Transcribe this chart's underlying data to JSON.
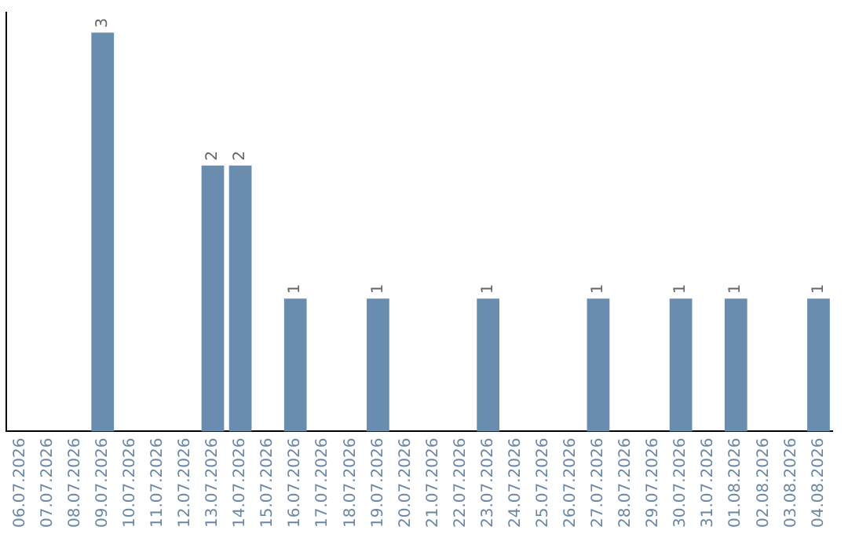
{
  "chart_data": {
    "type": "bar",
    "categories": [
      "06.07.2026",
      "07.07.2026",
      "08.07.2026",
      "09.07.2026",
      "10.07.2026",
      "11.07.2026",
      "12.07.2026",
      "13.07.2026",
      "14.07.2026",
      "15.07.2026",
      "16.07.2026",
      "17.07.2026",
      "18.07.2026",
      "19.07.2026",
      "20.07.2026",
      "21.07.2026",
      "22.07.2026",
      "23.07.2026",
      "24.07.2026",
      "25.07.2026",
      "26.07.2026",
      "27.07.2026",
      "28.07.2026",
      "29.07.2026",
      "30.07.2026",
      "31.07.2026",
      "01.08.2026",
      "02.08.2026",
      "03.08.2026",
      "04.08.2026"
    ],
    "values": [
      0,
      0,
      0,
      3,
      0,
      0,
      0,
      2,
      2,
      0,
      1,
      0,
      0,
      1,
      0,
      0,
      0,
      1,
      0,
      0,
      0,
      1,
      0,
      0,
      1,
      0,
      1,
      0,
      0,
      1
    ],
    "color": "#6a8caf",
    "ylim": [
      0,
      3.15
    ],
    "tick_labels": "x",
    "value_labels": [
      null,
      null,
      null,
      "3",
      null,
      null,
      null,
      "2",
      "2",
      null,
      "1",
      null,
      null,
      "1",
      null,
      null,
      null,
      "1",
      null,
      null,
      null,
      "1",
      null,
      null,
      "1",
      null,
      "1",
      null,
      null,
      "1"
    ],
    "grid": false,
    "legend": false
  }
}
